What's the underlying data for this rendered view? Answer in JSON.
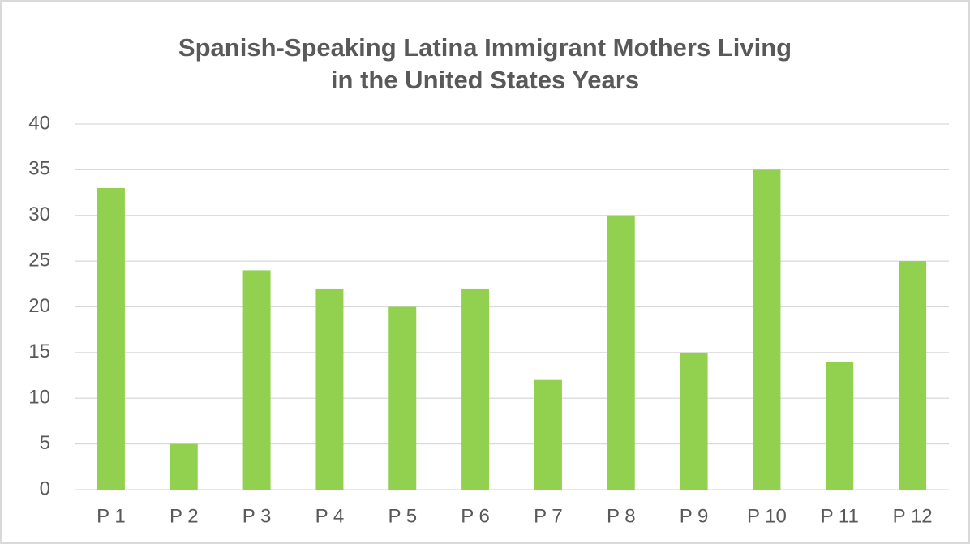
{
  "chart_data": {
    "type": "bar",
    "title": [
      "Spanish-Speaking Latina Immigrant Mothers Living",
      "in the United States Years"
    ],
    "categories": [
      "P 1",
      "P 2",
      "P 3",
      "P 4",
      "P 5",
      "P 6",
      "P 7",
      "P 8",
      "P 9",
      "P 10",
      "P 11",
      "P 12"
    ],
    "values": [
      33,
      5,
      24,
      22,
      20,
      22,
      12,
      30,
      15,
      35,
      14,
      25
    ],
    "color": "#92d050",
    "ylim": [
      0,
      40
    ],
    "yticks": [
      0,
      5,
      10,
      15,
      20,
      25,
      30,
      35,
      40
    ],
    "grid": true
  }
}
